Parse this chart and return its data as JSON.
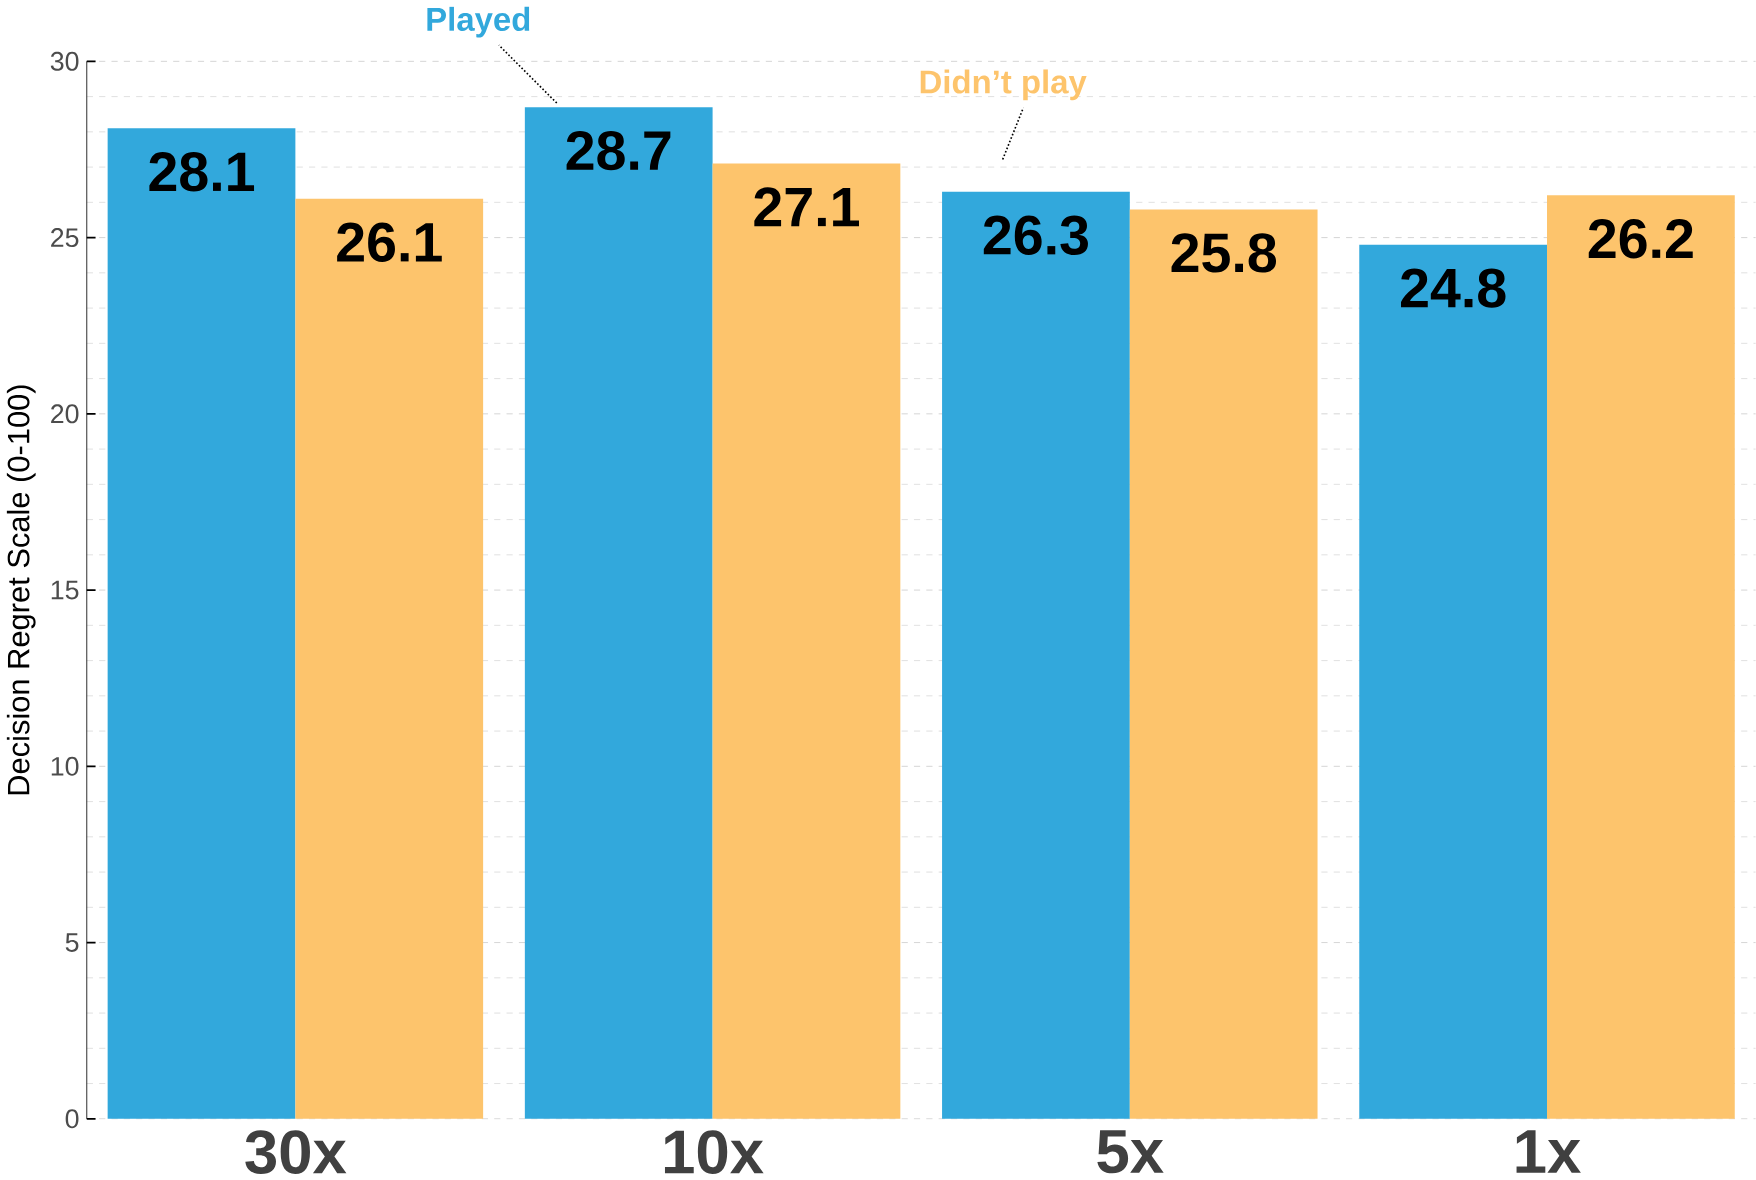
{
  "chart_data": {
    "type": "bar",
    "ylabel": "Decision Regret Scale (0-100)",
    "categories": [
      "30x",
      "10x",
      "5x",
      "1x"
    ],
    "series": [
      {
        "name": "Played",
        "color": "#32a8dc",
        "values": [
          28.1,
          28.7,
          26.3,
          24.8
        ]
      },
      {
        "name": "Didn’t play",
        "color": "#fdc46c",
        "values": [
          26.1,
          27.1,
          25.8,
          26.2
        ]
      }
    ],
    "ylim": [
      0,
      30
    ],
    "yticks": [
      0,
      5,
      10,
      15,
      20,
      25,
      30
    ],
    "grid": "y",
    "data_labels": true,
    "legend": "top"
  }
}
